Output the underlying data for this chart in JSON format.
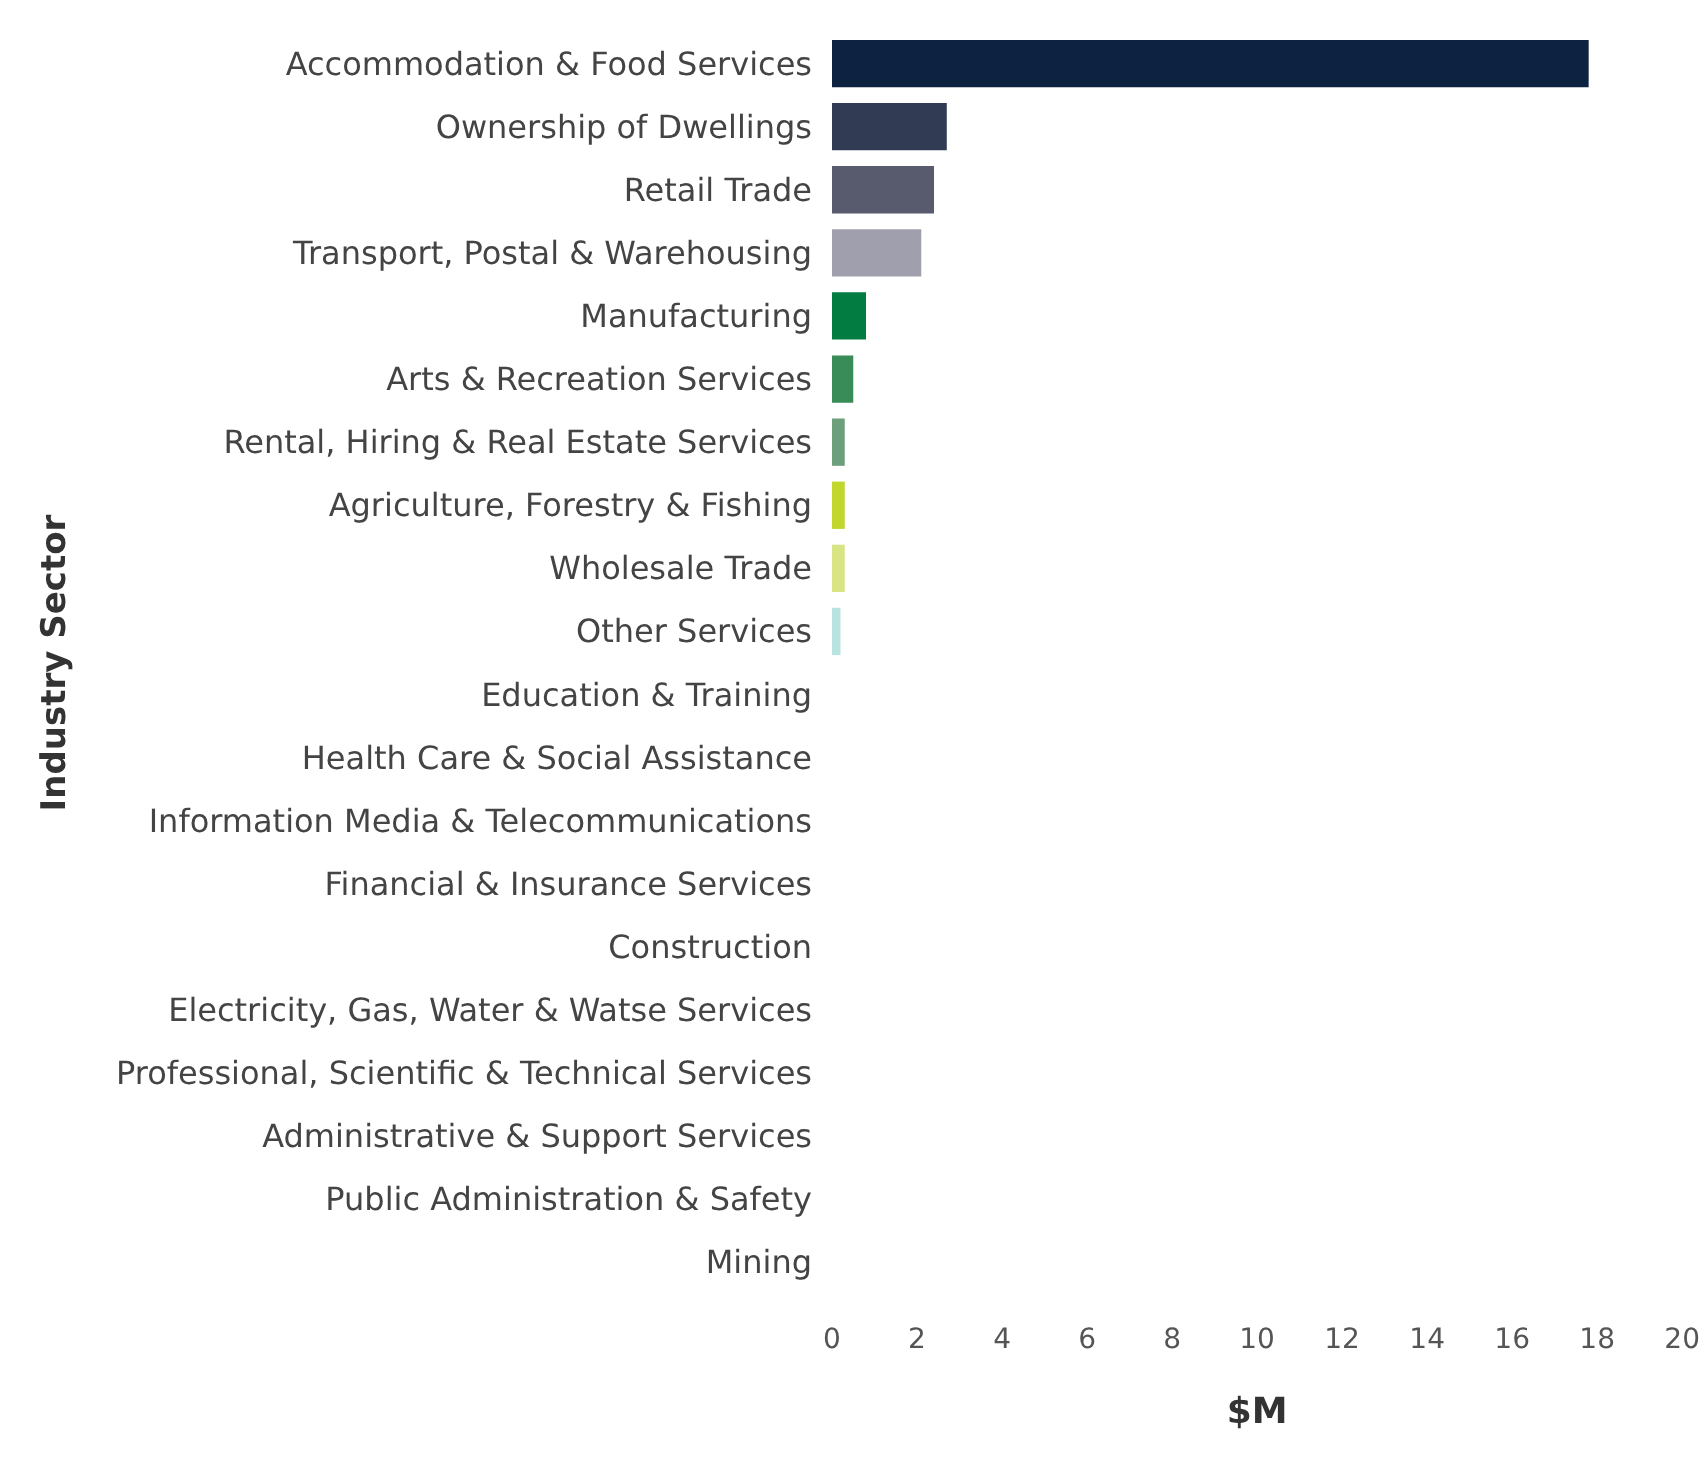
{
  "chart_data": {
    "type": "bar",
    "orientation": "horizontal",
    "ylabel": "Industry Sector",
    "xlabel": "$M",
    "categories": [
      "Accommodation & Food Services",
      "Ownership of Dwellings",
      "Retail Trade",
      "Transport, Postal & Warehousing",
      "Manufacturing",
      "Arts & Recreation Services",
      "Rental, Hiring & Real Estate Services",
      "Agriculture, Forestry & Fishing",
      "Wholesale Trade",
      "Other Services",
      "Education & Training",
      "Health Care & Social Assistance",
      "Information Media & Telecommunications",
      "Financial & Insurance Services",
      "Construction",
      "Electricity, Gas, Water & Watse Services",
      "Professional, Scientific & Technical Services",
      "Administrative & Support Services",
      "Public Administration & Safety",
      "Mining"
    ],
    "values": [
      17.8,
      2.7,
      2.4,
      2.1,
      0.8,
      0.5,
      0.3,
      0.3,
      0.3,
      0.2,
      0,
      0,
      0,
      0,
      0,
      0,
      0,
      0,
      0,
      0
    ],
    "colors": [
      "#0d2240",
      "#313c54",
      "#585a6d",
      "#a09fad",
      "#027c41",
      "#398b58",
      "#6e9f7b",
      "#c1d72e",
      "#d9e485",
      "#b9e3e0",
      "#0d2240",
      "#0d2240",
      "#0d2240",
      "#0d2240",
      "#0d2240",
      "#0d2240",
      "#0d2240",
      "#0d2240",
      "#0d2240",
      "#0d2240"
    ],
    "xlim": [
      0,
      20
    ],
    "xticks": [
      0,
      2,
      4,
      6,
      8,
      10,
      12,
      14,
      16,
      18,
      20
    ]
  }
}
